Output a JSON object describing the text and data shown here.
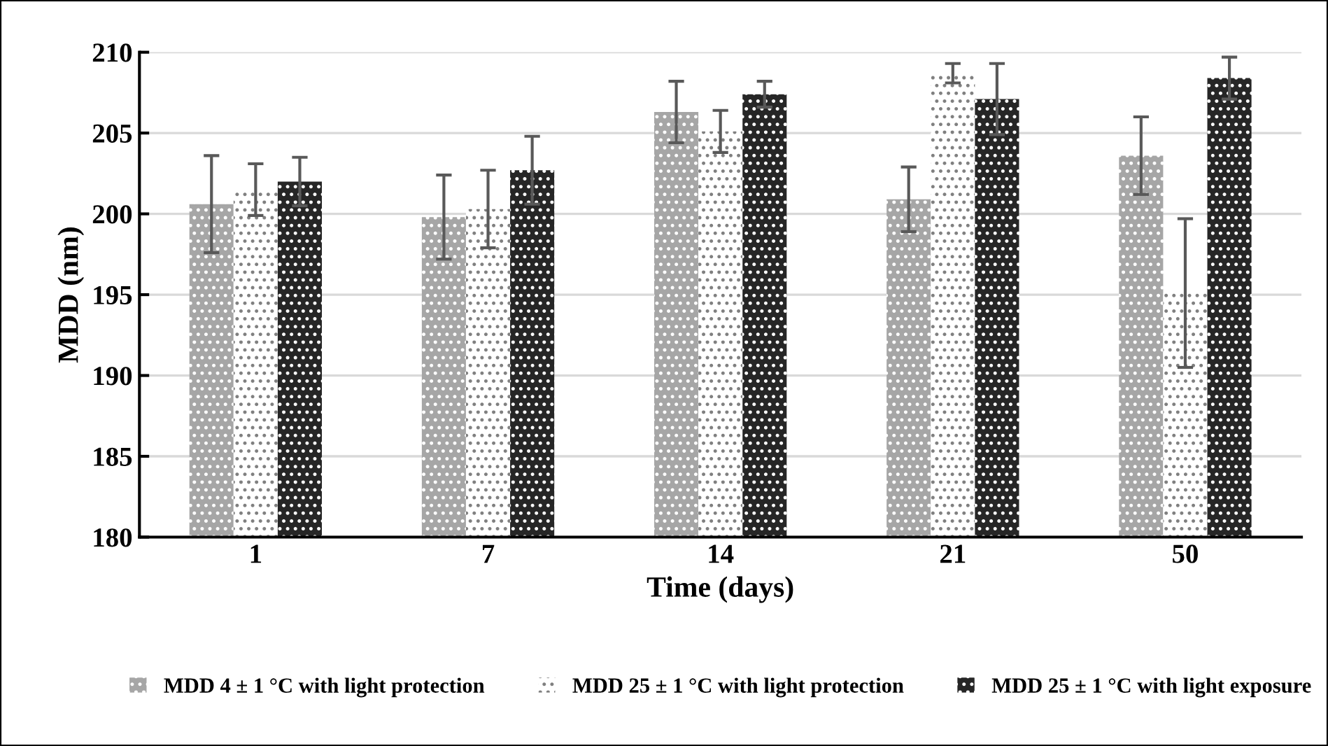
{
  "chart_data": {
    "type": "bar",
    "xlabel": "Time (days)",
    "ylabel": "MDD (nm)",
    "categories": [
      "1",
      "7",
      "14",
      "21",
      "50"
    ],
    "series": [
      {
        "name": "MDD 4 ± 1 °C with light protection",
        "color": "#a6a6a6",
        "values": [
          200.6,
          199.8,
          206.3,
          200.9,
          203.6
        ],
        "errors": [
          3.0,
          2.6,
          1.9,
          2.0,
          2.4
        ]
      },
      {
        "name": "MDD 25 ± 1 °C with light protection",
        "color": "#ffffff",
        "values": [
          201.5,
          200.3,
          205.1,
          208.7,
          195.1
        ],
        "errors": [
          1.6,
          2.4,
          1.3,
          0.6,
          4.6
        ]
      },
      {
        "name": "MDD 25 ± 1 °C with light exposure",
        "color": "#262626",
        "values": [
          202.0,
          202.7,
          207.4,
          207.1,
          208.4
        ],
        "errors": [
          1.5,
          2.1,
          0.8,
          2.2,
          1.3
        ]
      }
    ],
    "ylim": [
      180,
      210
    ],
    "yticks": [
      180,
      185,
      190,
      195,
      200,
      205,
      210
    ],
    "grid": "y",
    "legend": "bottom"
  }
}
